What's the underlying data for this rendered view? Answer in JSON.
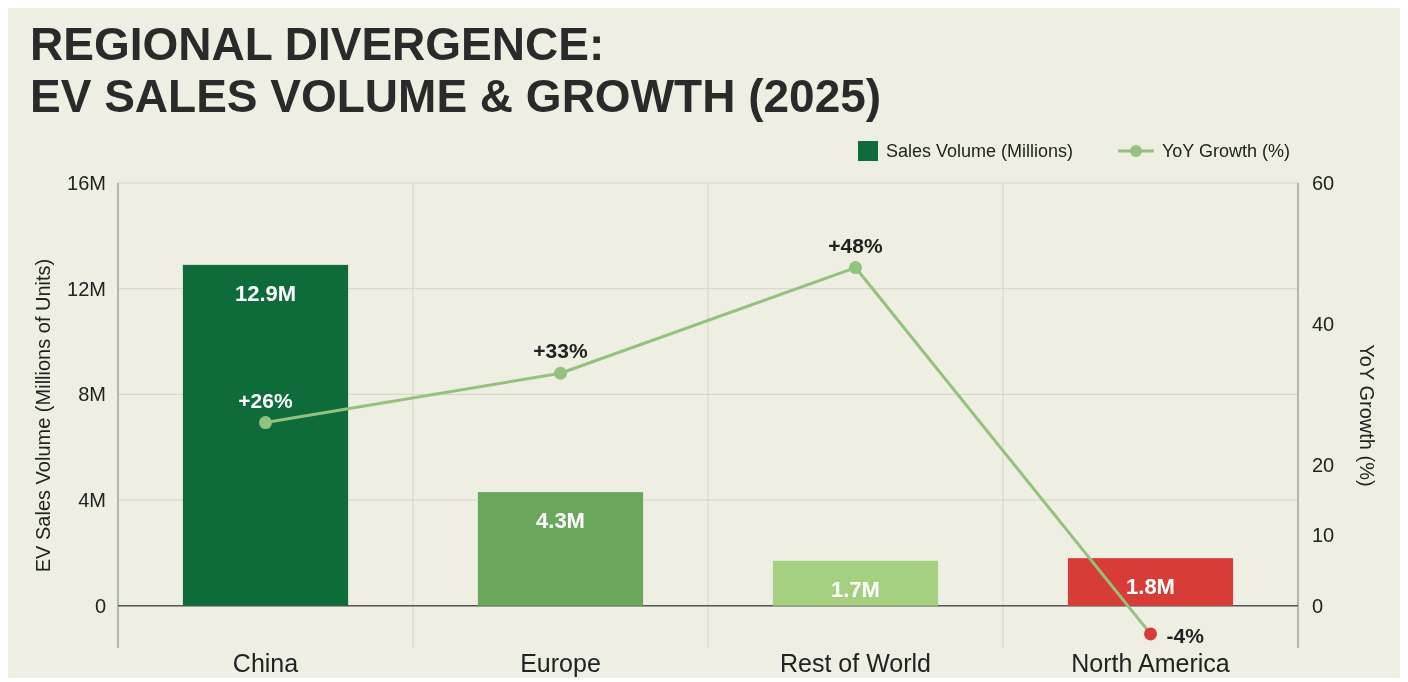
{
  "chart_data": {
    "type": "bar",
    "title": "REGIONAL DIVERGENCE:\nEV SALES VOLUME & GROWTH (2025)",
    "ylabel": "EV Sales Volume (Millions of Units)",
    "y2label": "YoY Growth (%)",
    "categories": [
      "China",
      "Europe",
      "Rest of World",
      "North America"
    ],
    "series": [
      {
        "name": "Sales Volume (Millions)",
        "color": "#0e6b3a",
        "colors": [
          "#0e6b3a",
          "#69a85c",
          "#a5d07f",
          "#d83c36"
        ],
        "values": [
          12.9,
          4.3,
          1.7,
          1.8
        ],
        "value_labels": [
          "12.9M",
          "4.3M",
          "1.7M",
          "1.8M"
        ]
      },
      {
        "name": "YoY Growth (%)",
        "type": "line",
        "axis": "y2",
        "color": "#93c27d",
        "colors": [
          "#93c27d",
          "#93c27d",
          "#93c27d",
          "#d83c36"
        ],
        "values": [
          26,
          33,
          48,
          -4
        ],
        "value_labels": [
          "+26%",
          "+33%",
          "+48%",
          "-4%"
        ]
      }
    ],
    "ylim": [
      -1.6,
      16
    ],
    "yticks": [
      0,
      {
        "value": 4,
        "label": "4M"
      },
      {
        "value": 8,
        "label": "8M"
      },
      {
        "value": 12,
        "label": "12M"
      },
      {
        "value": 16,
        "label": "16M"
      }
    ],
    "y2lim": [
      -6,
      60
    ],
    "y2ticks": [
      0,
      10,
      20,
      40,
      60
    ],
    "grid": true,
    "legend": "top right",
    "marker": "circle"
  }
}
